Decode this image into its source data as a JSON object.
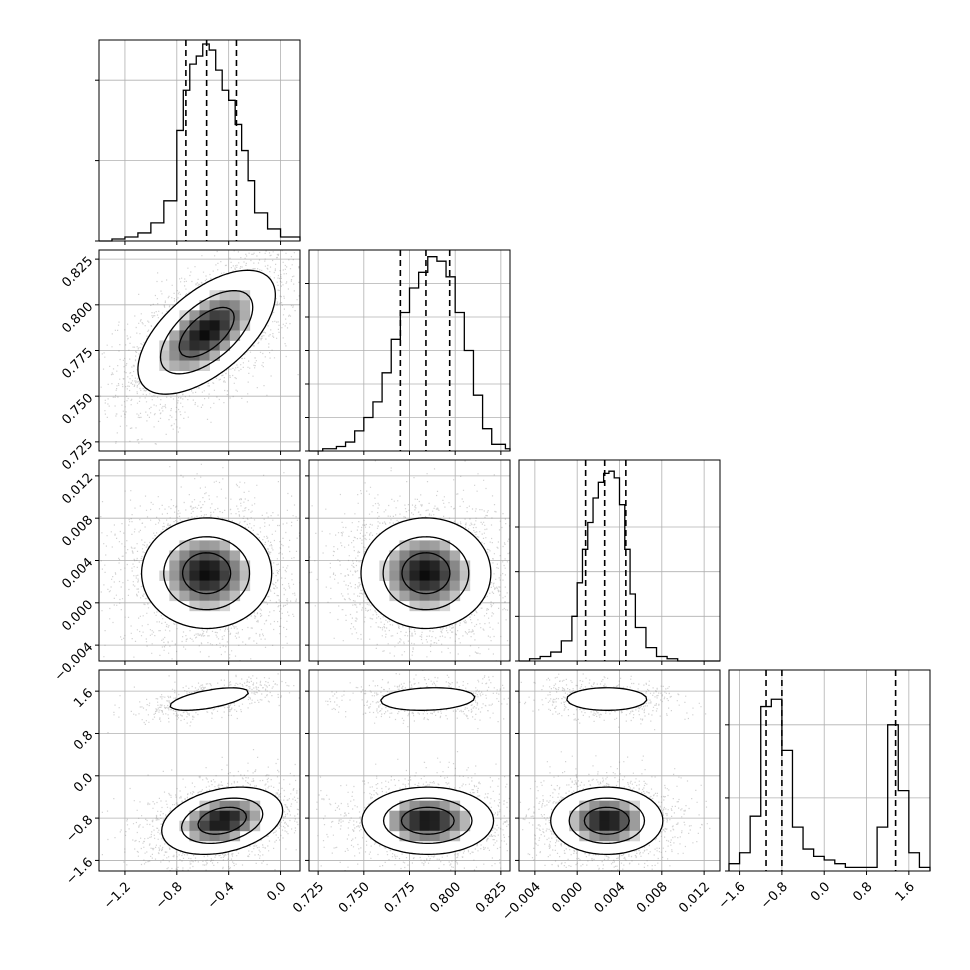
{
  "chart_data": {
    "type": "corner",
    "grid": true,
    "colors": {
      "line": "#000000",
      "grid": "#b0b0b0",
      "scatter": "#7f7f7f",
      "background": "#ffffff"
    },
    "quantile_lines": "dashed",
    "parameters": [
      {
        "range": [
          -1.4,
          0.15
        ],
        "ticks": [
          -1.2,
          -0.8,
          -0.4,
          0.0
        ],
        "tick_labels": [
          "−1.2",
          "−0.8",
          "−0.4",
          "0.0"
        ],
        "quantiles": [
          -0.73,
          -0.57,
          -0.34
        ],
        "hist": {
          "edges": [
            -1.4,
            -1.3,
            -1.2,
            -1.1,
            -1.0,
            -0.9,
            -0.8,
            -0.75,
            -0.7,
            -0.65,
            -0.6,
            -0.55,
            -0.5,
            -0.45,
            -0.4,
            -0.35,
            -0.3,
            -0.25,
            -0.2,
            -0.1,
            0.0,
            0.15
          ],
          "counts": [
            0,
            1,
            2,
            4,
            9,
            20,
            55,
            75,
            88,
            92,
            98,
            95,
            85,
            75,
            70,
            58,
            45,
            30,
            14,
            6,
            2
          ],
          "ymax": 100,
          "yticks": [
            0,
            40,
            80
          ]
        }
      },
      {
        "range": [
          0.72,
          0.83
        ],
        "ticks": [
          0.725,
          0.75,
          0.775,
          0.8,
          0.825
        ],
        "tick_labels": [
          "0.725",
          "0.750",
          "0.775",
          "0.800",
          "0.825"
        ],
        "quantiles": [
          0.77,
          0.784,
          0.797
        ],
        "hist": {
          "edges": [
            0.72,
            0.7275,
            0.735,
            0.74,
            0.745,
            0.75,
            0.755,
            0.76,
            0.765,
            0.77,
            0.775,
            0.78,
            0.785,
            0.79,
            0.795,
            0.8,
            0.805,
            0.81,
            0.815,
            0.82,
            0.8275,
            0.83
          ],
          "counts": [
            0,
            1,
            2,
            4,
            9,
            15,
            22,
            35,
            50,
            62,
            73,
            80,
            87,
            85,
            78,
            62,
            45,
            25,
            10,
            3,
            1
          ],
          "ymax": 90,
          "yticks": [
            0,
            15,
            30,
            45,
            60,
            75
          ]
        }
      },
      {
        "range": [
          -0.0055,
          0.0135
        ],
        "ticks": [
          -0.004,
          0.0,
          0.004,
          0.008,
          0.012
        ],
        "tick_labels": [
          "−0.004",
          "0.000",
          "0.004",
          "0.008",
          "0.012"
        ],
        "quantiles": [
          0.0008,
          0.0026,
          0.0046
        ],
        "hist": {
          "edges": [
            -0.0055,
            -0.0045,
            -0.0035,
            -0.0025,
            -0.0015,
            -0.0005,
            0.0,
            0.0005,
            0.001,
            0.0015,
            0.002,
            0.0025,
            0.003,
            0.0035,
            0.004,
            0.0045,
            0.005,
            0.0055,
            0.0065,
            0.0075,
            0.0085,
            0.0095,
            0.0135
          ],
          "counts": [
            0,
            1,
            2,
            4,
            9,
            20,
            35,
            50,
            62,
            73,
            80,
            84,
            85,
            82,
            70,
            50,
            30,
            15,
            6,
            2,
            1,
            0
          ],
          "ymax": 90,
          "yticks": [
            0,
            20,
            40,
            60
          ]
        }
      },
      {
        "range": [
          -1.8,
          2.0
        ],
        "ticks": [
          -1.6,
          -0.8,
          0.0,
          0.8,
          1.6
        ],
        "tick_labels": [
          "−1.6",
          "−0.8",
          "0.0",
          "0.8",
          "1.6"
        ],
        "quantiles": [
          -1.1,
          -0.8,
          1.35
        ],
        "hist": {
          "edges": [
            -1.8,
            -1.6,
            -1.4,
            -1.2,
            -1.0,
            -0.8,
            -0.6,
            -0.4,
            -0.2,
            0.0,
            0.2,
            0.4,
            0.6,
            0.8,
            1.0,
            1.2,
            1.4,
            1.6,
            1.8,
            2.0
          ],
          "counts": [
            2,
            5,
            15,
            45,
            47,
            33,
            12,
            6,
            4,
            3,
            2,
            1,
            1,
            1,
            12,
            40,
            22,
            5,
            1
          ],
          "ymax": 55,
          "yticks": [
            0,
            20,
            40
          ]
        }
      }
    ],
    "pairs": [
      {
        "row": 1,
        "col": 0,
        "blobs": [
          {
            "mx": -0.57,
            "my": 0.785,
            "sx": 0.25,
            "sy": 0.016,
            "rho": 0.6,
            "peak": 0.66
          }
        ]
      },
      {
        "row": 2,
        "col": 0,
        "blobs": [
          {
            "mx": -0.57,
            "my": 0.0028,
            "sx": 0.24,
            "sy": 0.0025,
            "rho": 0.0,
            "peak": 0.62
          }
        ]
      },
      {
        "row": 2,
        "col": 1,
        "blobs": [
          {
            "mx": 0.784,
            "my": 0.0028,
            "sx": 0.017,
            "sy": 0.0025,
            "rho": 0.0,
            "peak": 0.62
          }
        ]
      },
      {
        "row": 3,
        "col": 0,
        "blobs": [
          {
            "mx": -0.55,
            "my": 1.45,
            "sx": 0.2,
            "sy": 0.14,
            "rho": 0.6,
            "peak": 0.22
          },
          {
            "mx": -0.45,
            "my": -0.85,
            "sx": 0.22,
            "sy": 0.3,
            "rho": 0.3,
            "peak": 0.66
          }
        ]
      },
      {
        "row": 3,
        "col": 1,
        "blobs": [
          {
            "mx": 0.785,
            "my": 1.45,
            "sx": 0.017,
            "sy": 0.14,
            "rho": 0.15,
            "peak": 0.22
          },
          {
            "mx": 0.785,
            "my": -0.85,
            "sx": 0.017,
            "sy": 0.3,
            "rho": 0.0,
            "peak": 0.66
          }
        ]
      },
      {
        "row": 3,
        "col": 2,
        "blobs": [
          {
            "mx": 0.0028,
            "my": 1.45,
            "sx": 0.0025,
            "sy": 0.14,
            "rho": 0.0,
            "peak": 0.22
          },
          {
            "mx": 0.0028,
            "my": -0.85,
            "sx": 0.0025,
            "sy": 0.3,
            "rho": 0.0,
            "peak": 0.66
          }
        ]
      }
    ],
    "contour_levels": [
      0.07,
      0.24,
      0.46
    ],
    "xlabel": "",
    "ylabel": "",
    "title": ""
  }
}
